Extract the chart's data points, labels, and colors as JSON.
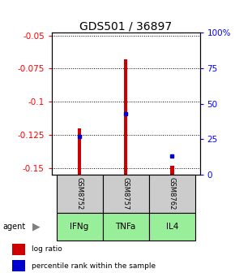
{
  "title": "GDS501 / 36897",
  "categories": [
    "GSM8752",
    "GSM8757",
    "GSM8762"
  ],
  "agents": [
    "IFNg",
    "TNFa",
    "IL4"
  ],
  "ylim_left": [
    -0.155,
    -0.048
  ],
  "ylim_right": [
    0,
    100
  ],
  "yticks_left": [
    -0.15,
    -0.125,
    -0.1,
    -0.075,
    -0.05
  ],
  "yticks_right": [
    0,
    25,
    50,
    75,
    100
  ],
  "ytick_labels_right": [
    "0",
    "25",
    "50",
    "75",
    "100%"
  ],
  "bar_bottom": -0.155,
  "bar_tops_red": [
    -0.12,
    -0.068,
    -0.148
  ],
  "blue_marker_pct": [
    27,
    43,
    13
  ],
  "red_color": "#cc0000",
  "blue_color": "#0000cc",
  "bar_width": 0.08,
  "gsm_bg": "#cccccc",
  "agent_bg": "#99ee99",
  "title_fontsize": 10,
  "tick_fontsize": 7.5
}
